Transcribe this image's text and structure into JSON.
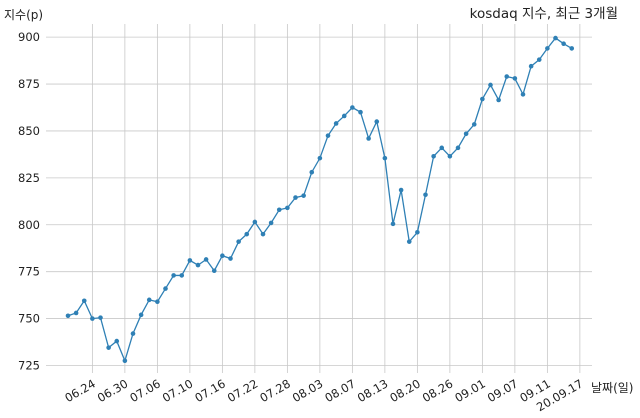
{
  "chart_data": {
    "type": "line",
    "title": "kosdaq 지수, 최근 3개월",
    "ylabel": "지수(p)",
    "xlabel": "날짜(일)",
    "ylim": [
      721,
      907
    ],
    "yticks": [
      725,
      750,
      775,
      800,
      825,
      850,
      875,
      900
    ],
    "grid": true,
    "line_color": "#2f80b5",
    "grid_color": "#c8c8c8",
    "xtick_labels": [
      "06.24",
      "06.30",
      "07.06",
      "07.10",
      "07.16",
      "07.22",
      "07.28",
      "08.03",
      "08.07",
      "08.13",
      "08.20",
      "08.26",
      "09.01",
      "09.07",
      "09.11",
      "20.09.17"
    ],
    "xtick_index": [
      3,
      7,
      11,
      15,
      19,
      23,
      27,
      31,
      35,
      39,
      43,
      47,
      51,
      55,
      59,
      63
    ],
    "values": [
      751.5,
      753.0,
      759.5,
      750.0,
      750.5,
      734.5,
      738.0,
      727.5,
      742.0,
      752.0,
      760.0,
      759.0,
      766.0,
      773.0,
      773.0,
      781.0,
      778.5,
      781.5,
      775.5,
      783.5,
      782.0,
      791.0,
      795.0,
      801.5,
      795.0,
      801.0,
      808.0,
      809.0,
      814.5,
      815.5,
      828.0,
      835.5,
      847.5,
      854.0,
      858.0,
      862.5,
      860.0,
      846.0,
      855.0,
      835.5,
      800.5,
      818.5,
      791.0,
      796.0,
      816.0,
      836.5,
      841.0,
      836.5,
      841.0,
      848.5,
      853.5,
      867.0,
      874.5,
      866.5,
      879.0,
      878.0,
      869.5,
      884.5,
      888.0,
      894.0,
      899.5,
      896.5,
      894.0
    ]
  }
}
